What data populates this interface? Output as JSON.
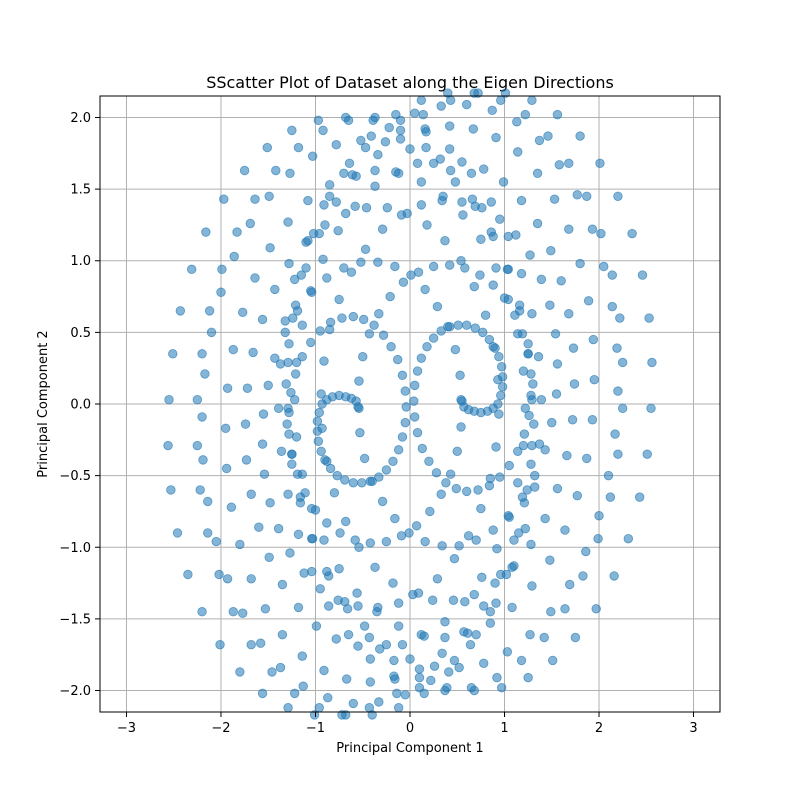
{
  "chart_data": {
    "type": "scatter",
    "title": "SScatter Plot of Dataset along the Eigen Directions",
    "xlabel": "Principal Component 1",
    "ylabel": "Principal Component 2",
    "xlim": [
      -3.28,
      3.28
    ],
    "ylim": [
      -2.15,
      2.15
    ],
    "xticks": [
      -3,
      -2,
      -1,
      0,
      1,
      2,
      3
    ],
    "xtick_labels": [
      "−3",
      "−2",
      "−1",
      "0",
      "1",
      "2",
      "3"
    ],
    "yticks": [
      -2.0,
      -1.5,
      -1.0,
      -0.5,
      0.0,
      0.5,
      1.0,
      1.5,
      2.0
    ],
    "ytick_labels": [
      "−2.0",
      "−1.5",
      "−1.0",
      "−0.5",
      "0.0",
      "0.5",
      "1.0",
      "1.5",
      "2.0"
    ],
    "grid": true,
    "marker_color": "#1f77b4",
    "marker_alpha": 0.55,
    "description_of_data": "Two interleaved spirals (mirror symmetric), each tracing ~2 turns from a center near (±0.5, 0) outward to radius ~2.5",
    "series": [
      {
        "points": [
          [
            -0.54,
            -0.03
          ],
          [
            -0.57,
            0.02
          ],
          [
            -0.62,
            0.04
          ],
          [
            -0.68,
            0.05
          ],
          [
            -0.75,
            0.06
          ],
          [
            -0.82,
            0.05
          ],
          [
            -0.88,
            0.03
          ],
          [
            -0.93,
            0.0
          ],
          [
            -0.96,
            -0.06
          ],
          [
            -0.98,
            -0.12
          ],
          [
            -0.98,
            -0.19
          ],
          [
            -0.97,
            -0.26
          ],
          [
            -0.94,
            -0.33
          ],
          [
            -0.9,
            -0.39
          ],
          [
            -0.84,
            -0.45
          ],
          [
            -0.77,
            -0.5
          ],
          [
            -0.69,
            -0.53
          ],
          [
            -0.6,
            -0.55
          ],
          [
            -0.51,
            -0.55
          ],
          [
            -0.42,
            -0.54
          ],
          [
            -0.33,
            -0.51
          ],
          [
            -0.25,
            -0.46
          ],
          [
            -0.18,
            -0.4
          ],
          [
            -0.12,
            -0.32
          ],
          [
            -0.08,
            -0.23
          ],
          [
            -0.05,
            -0.13
          ],
          [
            -0.04,
            -0.02
          ],
          [
            -0.05,
            0.09
          ],
          [
            -0.08,
            0.2
          ],
          [
            -0.13,
            0.31
          ],
          [
            -0.2,
            0.4
          ],
          [
            -0.28,
            0.48
          ],
          [
            -0.38,
            0.55
          ],
          [
            -0.49,
            0.59
          ],
          [
            -0.6,
            0.61
          ],
          [
            -0.72,
            0.6
          ],
          [
            -0.84,
            0.57
          ],
          [
            -0.95,
            0.51
          ],
          [
            -1.05,
            0.43
          ],
          [
            -1.14,
            0.33
          ],
          [
            -1.21,
            0.21
          ],
          [
            -1.26,
            0.08
          ],
          [
            -1.28,
            -0.06
          ],
          [
            -1.28,
            -0.21
          ],
          [
            -1.25,
            -0.35
          ],
          [
            -1.19,
            -0.49
          ],
          [
            -1.11,
            -0.62
          ],
          [
            -1.0,
            -0.74
          ],
          [
            -0.88,
            -0.83
          ],
          [
            -0.74,
            -0.9
          ],
          [
            -0.58,
            -0.95
          ],
          [
            -0.42,
            -0.97
          ],
          [
            -0.25,
            -0.96
          ],
          [
            -0.09,
            -0.92
          ],
          [
            0.07,
            -0.85
          ],
          [
            0.21,
            -0.75
          ],
          [
            0.33,
            -0.63
          ],
          [
            0.43,
            -0.49
          ],
          [
            0.5,
            -0.33
          ],
          [
            0.54,
            -0.16
          ],
          [
            0.55,
            0.02
          ],
          [
            0.53,
            0.2
          ],
          [
            0.48,
            0.38
          ],
          [
            0.4,
            0.54
          ],
          [
            0.29,
            0.68
          ],
          [
            0.16,
            0.8
          ],
          [
            0.01,
            0.9
          ],
          [
            -0.16,
            0.96
          ],
          [
            -0.34,
            0.99
          ],
          [
            -0.52,
            0.99
          ],
          [
            -0.7,
            0.95
          ],
          [
            -0.88,
            0.88
          ],
          [
            -1.04,
            0.78
          ],
          [
            -1.19,
            0.65
          ],
          [
            -1.32,
            0.5
          ],
          [
            -1.43,
            0.32
          ],
          [
            -1.5,
            0.13
          ],
          [
            -1.55,
            -0.07
          ],
          [
            -1.56,
            -0.28
          ],
          [
            -1.54,
            -0.49
          ],
          [
            -1.48,
            -0.69
          ],
          [
            -1.39,
            -0.87
          ],
          [
            -1.27,
            -1.04
          ],
          [
            -1.12,
            -1.18
          ],
          [
            -0.95,
            -1.29
          ],
          [
            -0.76,
            -1.37
          ],
          [
            -0.55,
            -1.41
          ],
          [
            -0.34,
            -1.42
          ],
          [
            -0.12,
            -1.39
          ],
          [
            0.09,
            -1.32
          ],
          [
            0.29,
            -1.22
          ],
          [
            0.47,
            -1.08
          ],
          [
            0.62,
            -0.92
          ],
          [
            0.75,
            -0.73
          ],
          [
            0.85,
            -0.52
          ],
          [
            0.91,
            -0.3
          ],
          [
            0.94,
            -0.07
          ],
          [
            0.93,
            0.17
          ],
          [
            0.88,
            0.4
          ],
          [
            0.8,
            0.62
          ],
          [
            0.68,
            0.82
          ],
          [
            0.54,
            1.0
          ],
          [
            0.37,
            1.14
          ],
          [
            0.18,
            1.25
          ],
          [
            -0.03,
            1.33
          ],
          [
            -0.24,
            1.37
          ],
          [
            -0.46,
            1.37
          ],
          [
            -0.68,
            1.33
          ],
          [
            -0.9,
            1.25
          ],
          [
            -1.1,
            1.13
          ],
          [
            -1.28,
            0.98
          ],
          [
            -1.43,
            0.8
          ],
          [
            -1.56,
            0.59
          ],
          [
            -1.66,
            0.36
          ],
          [
            -1.72,
            0.11
          ],
          [
            -1.74,
            -0.14
          ],
          [
            -1.73,
            -0.39
          ],
          [
            -1.68,
            -0.63
          ],
          [
            -1.6,
            -0.86
          ],
          [
            -1.49,
            -1.07
          ],
          [
            -1.35,
            -1.26
          ],
          [
            -1.18,
            -1.42
          ],
          [
            -0.99,
            -1.55
          ],
          [
            -0.78,
            -1.64
          ],
          [
            -0.55,
            -1.69
          ],
          [
            -0.32,
            -1.71
          ],
          [
            -0.08,
            -1.68
          ],
          [
            0.15,
            -1.62
          ],
          [
            0.37,
            -1.52
          ],
          [
            0.58,
            -1.38
          ],
          [
            0.76,
            -1.21
          ],
          [
            0.92,
            -1.01
          ],
          [
            1.05,
            -0.79
          ],
          [
            1.14,
            -0.55
          ],
          [
            1.2,
            -0.29
          ],
          [
            1.22,
            -0.03
          ],
          [
            1.2,
            0.23
          ],
          [
            1.14,
            0.49
          ],
          [
            1.04,
            0.73
          ],
          [
            0.91,
            0.95
          ],
          [
            0.75,
            1.15
          ],
          [
            0.56,
            1.32
          ],
          [
            0.35,
            1.45
          ],
          [
            0.12,
            1.55
          ],
          [
            -0.12,
            1.61
          ],
          [
            -0.37,
            1.63
          ],
          [
            -0.61,
            1.6
          ],
          [
            -0.85,
            1.53
          ],
          [
            -1.08,
            1.42
          ],
          [
            -1.29,
            1.27
          ],
          [
            -1.48,
            1.09
          ],
          [
            -1.64,
            0.88
          ],
          [
            -1.77,
            0.64
          ],
          [
            -1.87,
            0.38
          ],
          [
            -1.93,
            0.11
          ],
          [
            -1.95,
            -0.17
          ],
          [
            -1.94,
            -0.45
          ],
          [
            -1.89,
            -0.72
          ],
          [
            -1.8,
            -0.98
          ],
          [
            -1.68,
            -1.22
          ],
          [
            -1.53,
            -1.43
          ],
          [
            -1.35,
            -1.61
          ],
          [
            -1.14,
            -1.76
          ],
          [
            -0.91,
            -1.86
          ],
          [
            -0.67,
            -1.92
          ],
          [
            -0.42,
            -1.94
          ],
          [
            -0.16,
            -1.92
          ],
          [
            0.1,
            -1.85
          ],
          [
            0.34,
            -1.74
          ],
          [
            0.57,
            -1.59
          ],
          [
            0.78,
            -1.41
          ],
          [
            0.96,
            -1.19
          ],
          [
            1.1,
            -0.95
          ],
          [
            1.21,
            -0.69
          ],
          [
            1.28,
            -0.42
          ],
          [
            1.31,
            -0.14
          ],
          [
            1.3,
            0.14
          ],
          [
            1.25,
            0.42
          ],
          [
            1.16,
            0.69
          ],
          [
            1.04,
            0.94
          ],
          [
            0.88,
            1.17
          ],
          [
            0.69,
            1.38
          ],
          [
            0.48,
            1.55
          ],
          [
            0.25,
            1.68
          ],
          [
            0.0,
            1.78
          ],
          [
            -0.26,
            1.83
          ],
          [
            -0.52,
            1.84
          ],
          [
            -0.78,
            1.81
          ],
          [
            -1.03,
            1.73
          ],
          [
            -1.27,
            1.61
          ],
          [
            -1.49,
            1.45
          ],
          [
            -1.69,
            1.26
          ],
          [
            -1.86,
            1.03
          ],
          [
            -2.0,
            0.78
          ],
          [
            -2.1,
            0.5
          ],
          [
            -2.17,
            0.21
          ],
          [
            -2.2,
            -0.09
          ],
          [
            -2.19,
            -0.39
          ],
          [
            -2.14,
            -0.68
          ],
          [
            -2.05,
            -0.96
          ],
          [
            -1.93,
            -1.22
          ],
          [
            -1.77,
            -1.46
          ],
          [
            -1.58,
            -1.67
          ],
          [
            -1.37,
            -1.84
          ],
          [
            -1.13,
            -1.97
          ],
          [
            -0.87,
            -2.05
          ],
          [
            -0.6,
            -2.09
          ],
          [
            -0.33,
            -2.08
          ],
          [
            -0.05,
            -2.03
          ],
          [
            0.22,
            -1.93
          ],
          [
            0.47,
            -1.79
          ],
          [
            0.7,
            -1.61
          ],
          [
            0.91,
            -1.39
          ],
          [
            1.08,
            -1.14
          ],
          [
            1.22,
            -0.87
          ],
          [
            1.32,
            -0.58
          ],
          [
            1.37,
            -0.28
          ],
          [
            1.39,
            0.03
          ],
          [
            1.36,
            0.33
          ],
          [
            1.29,
            0.63
          ],
          [
            1.18,
            0.91
          ],
          [
            1.04,
            1.17
          ],
          [
            0.86,
            1.41
          ],
          [
            0.65,
            1.61
          ],
          [
            0.42,
            1.78
          ],
          [
            0.17,
            1.9
          ],
          [
            -0.1,
            1.98
          ],
          [
            -0.37,
            2.0
          ],
          [
            -0.65,
            1.98
          ],
          [
            -0.92,
            1.91
          ],
          [
            -1.18,
            1.79
          ],
          [
            -1.42,
            1.63
          ],
          [
            -1.64,
            1.43
          ],
          [
            -1.83,
            1.2
          ],
          [
            -1.99,
            0.94
          ],
          [
            -2.12,
            0.65
          ],
          [
            -2.2,
            0.35
          ],
          [
            -2.25,
            0.03
          ],
          [
            -2.25,
            -0.29
          ],
          [
            -2.22,
            -0.6
          ],
          [
            -2.14,
            -0.9
          ],
          [
            -2.02,
            -1.19
          ],
          [
            -1.87,
            -1.45
          ],
          [
            -1.68,
            -1.68
          ],
          [
            -1.46,
            -1.87
          ],
          [
            -1.22,
            -2.02
          ],
          [
            -0.96,
            -2.12
          ],
          [
            -0.68,
            -2.17
          ],
          [
            -0.4,
            -2.17
          ],
          [
            -0.12,
            -2.12
          ],
          [
            0.15,
            -2.02
          ],
          [
            0.41,
            -1.87
          ],
          [
            0.64,
            -1.68
          ],
          [
            0.85,
            -1.45
          ],
          [
            1.02,
            -1.19
          ],
          [
            1.15,
            -0.9
          ],
          [
            1.24,
            -0.6
          ],
          [
            1.29,
            -0.29
          ],
          [
            1.29,
            0.03
          ],
          [
            1.25,
            0.35
          ],
          [
            1.16,
            0.65
          ],
          [
            1.03,
            0.94
          ],
          [
            0.86,
            1.2
          ],
          [
            0.66,
            1.43
          ],
          [
            0.43,
            1.63
          ],
          [
            0.17,
            1.79
          ],
          [
            -0.1,
            1.91
          ],
          [
            -0.39,
            1.98
          ],
          [
            -0.68,
            2.0
          ],
          [
            -0.97,
            1.98
          ],
          [
            -1.25,
            1.91
          ],
          [
            -1.51,
            1.79
          ],
          [
            -1.75,
            1.63
          ],
          [
            -1.97,
            1.43
          ],
          [
            -2.16,
            1.2
          ],
          [
            -2.31,
            0.94
          ],
          [
            -2.43,
            0.65
          ],
          [
            -2.51,
            0.35
          ],
          [
            -2.55,
            0.03
          ],
          [
            -2.56,
            -0.29
          ],
          [
            -2.53,
            -0.6
          ],
          [
            -2.46,
            -0.9
          ],
          [
            -2.35,
            -1.19
          ],
          [
            -2.2,
            -1.45
          ],
          [
            -2.01,
            -1.68
          ],
          [
            -1.8,
            -1.87
          ],
          [
            -1.56,
            -2.02
          ],
          [
            -1.29,
            -2.12
          ],
          [
            -1.01,
            -2.17
          ],
          [
            -0.72,
            -2.17
          ],
          [
            -0.43,
            -2.12
          ],
          [
            -0.14,
            -2.02
          ]
        ]
      }
    ]
  }
}
